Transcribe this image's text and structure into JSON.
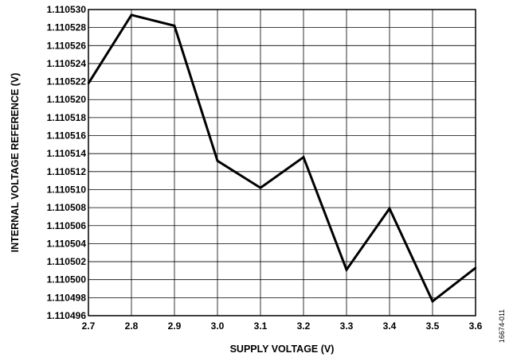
{
  "chart_data": {
    "type": "line",
    "title": "",
    "xlabel": "SUPPLY VOLTAGE (V)",
    "ylabel": "INTERNAL VOLTAGE REFERENCE (V)",
    "xlim": [
      2.7,
      3.6
    ],
    "ylim": [
      1.110496,
      1.11053
    ],
    "grid": true,
    "x_ticks": [
      "2.7",
      "2.8",
      "2.9",
      "3.0",
      "3.1",
      "3.2",
      "3.3",
      "3.4",
      "3.5",
      "3.6"
    ],
    "y_ticks": [
      "1.110496",
      "1.110498",
      "1.110500",
      "1.110502",
      "1.110504",
      "1.110506",
      "1.110508",
      "1.110510",
      "1.110512",
      "1.110514",
      "1.110516",
      "1.110518",
      "1.110520",
      "1.110522",
      "1.110524",
      "1.110526",
      "1.110528",
      "1.110530"
    ],
    "x": [
      2.7,
      2.8,
      2.9,
      3.0,
      3.1,
      3.2,
      3.3,
      3.4,
      3.5,
      3.6
    ],
    "values": [
      1.1105218,
      1.1105294,
      1.1105282,
      1.1105132,
      1.1105102,
      1.1105136,
      1.1105011,
      1.1105079,
      1.1104976,
      1.1105013
    ],
    "figure_id": "16674-011"
  }
}
